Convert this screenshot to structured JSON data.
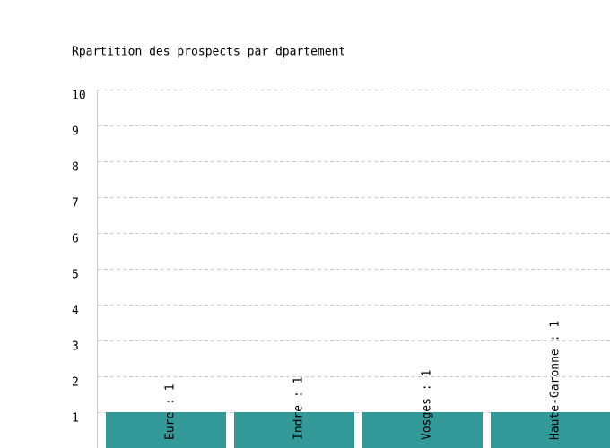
{
  "chart_data": {
    "type": "bar",
    "title": "Rpartition des prospects par dpartement",
    "values": [
      1,
      1,
      1,
      1
    ],
    "value_labels": [
      "Eure : 1",
      "Indre : 1",
      "Vosges : 1",
      "Haute-Garonne : 1"
    ],
    "color": "#339999",
    "ylim": [
      0,
      10
    ],
    "yticks": [
      1,
      2,
      3,
      4,
      5,
      6,
      7,
      8,
      9,
      10
    ],
    "grid": true
  }
}
